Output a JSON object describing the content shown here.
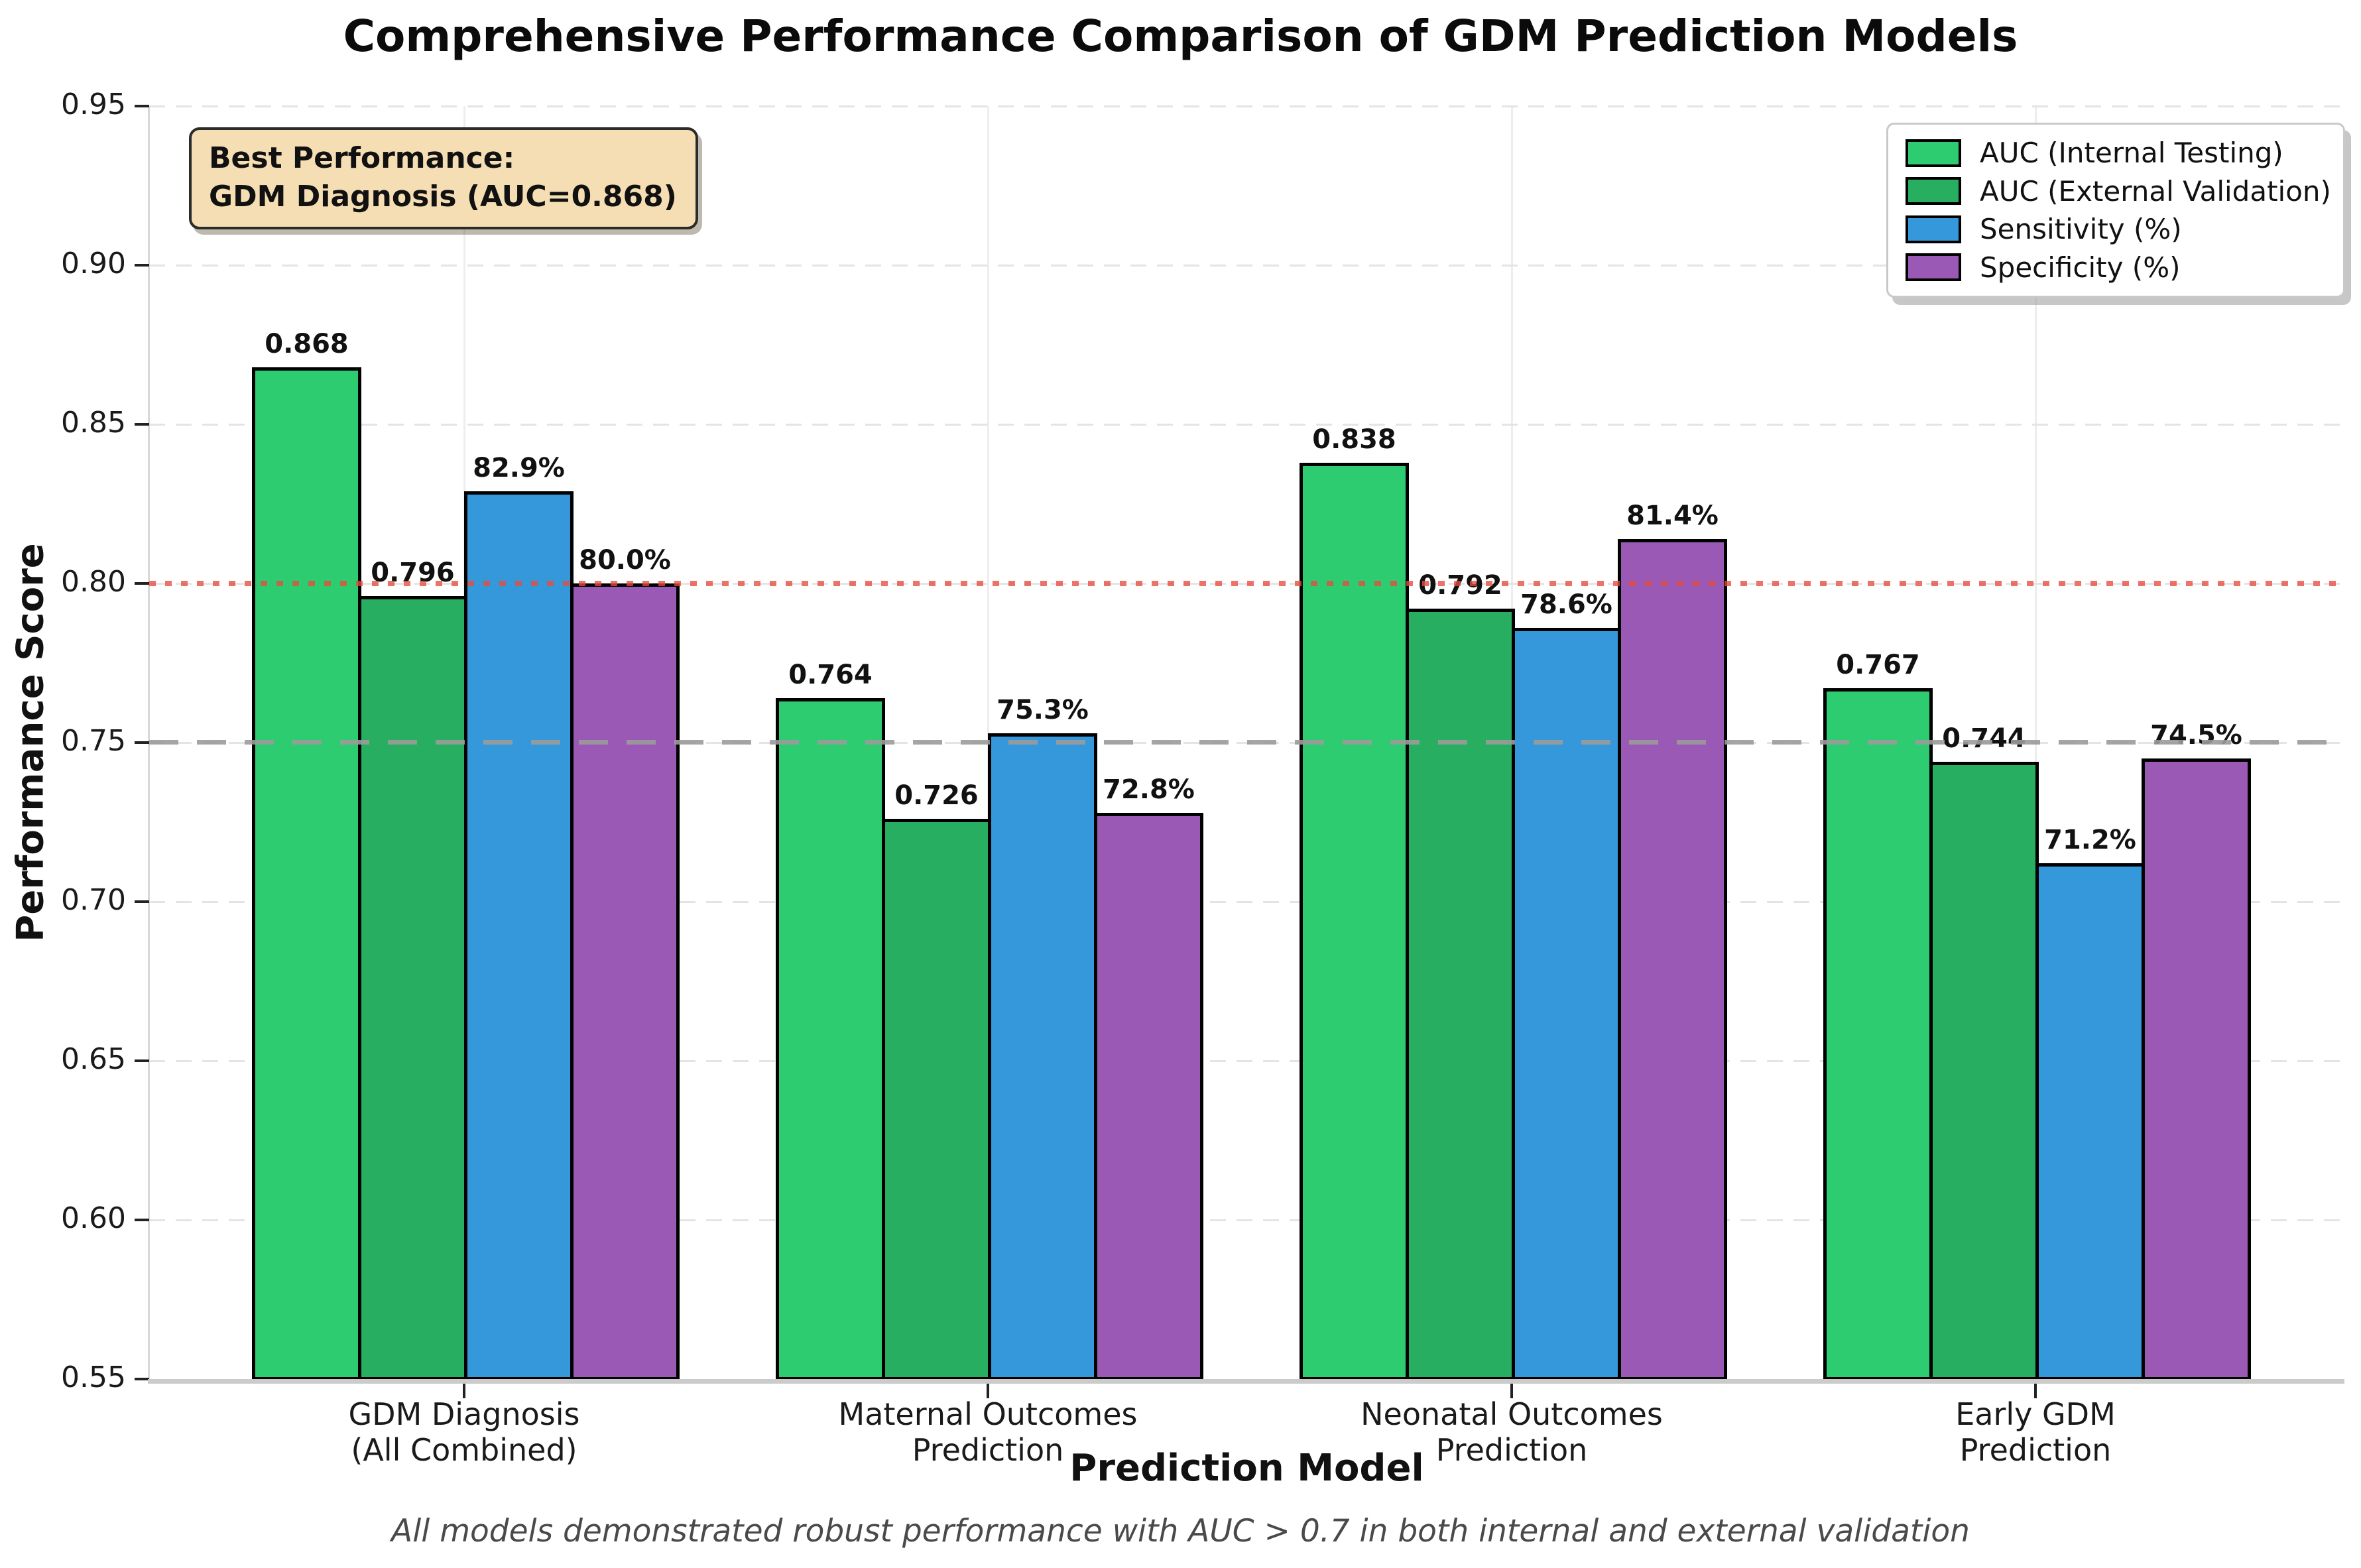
{
  "title": "Comprehensive Performance Comparison of GDM Prediction Models",
  "annotation": {
    "line1": "Best Performance:",
    "line2": "GDM Diagnosis (AUC=0.868)"
  },
  "footer": "All models demonstrated robust performance with AUC > 0.7 in both internal and external validation",
  "colors": {
    "auc_internal": "#2ecc71",
    "auc_external": "#27ae60",
    "sensitivity": "#3498db",
    "specificity": "#9b59b6",
    "threshold_high": "#e74c3c",
    "threshold_low": "#a0a0a0",
    "annotation_bg": "#f5deb3"
  },
  "chart_data": {
    "type": "bar",
    "title": "Comprehensive Performance Comparison of GDM Prediction Models",
    "xlabel": "Prediction Model",
    "ylabel": "Performance Score",
    "ylim": [
      0.55,
      0.95
    ],
    "y_ticks": [
      "0.55",
      "0.60",
      "0.65",
      "0.70",
      "0.75",
      "0.80",
      "0.85",
      "0.90",
      "0.95"
    ],
    "grid": "on",
    "legend_position": "upper right",
    "categories": [
      {
        "line1": "GDM Diagnosis",
        "line2": "(All Combined)"
      },
      {
        "line1": "Maternal Outcomes",
        "line2": "Prediction"
      },
      {
        "line1": "Neonatal Outcomes",
        "line2": "Prediction"
      },
      {
        "line1": "Early GDM",
        "line2": "Prediction"
      }
    ],
    "series": [
      {
        "name": "AUC (Internal Testing)",
        "color": "#2ecc71",
        "values": [
          0.868,
          0.764,
          0.838,
          0.767
        ],
        "labels": [
          "0.868",
          "0.764",
          "0.838",
          "0.767"
        ]
      },
      {
        "name": "AUC (External Validation)",
        "color": "#27ae60",
        "values": [
          0.796,
          0.726,
          0.792,
          0.744
        ],
        "labels": [
          "0.796",
          "0.726",
          "0.792",
          "0.744"
        ]
      },
      {
        "name": "Sensitivity (%)",
        "color": "#3498db",
        "values": [
          0.829,
          0.753,
          0.786,
          0.712
        ],
        "labels": [
          "82.9%",
          "75.3%",
          "78.6%",
          "71.2%"
        ]
      },
      {
        "name": "Specificity (%)",
        "color": "#9b59b6",
        "values": [
          0.8,
          0.728,
          0.814,
          0.745
        ],
        "labels": [
          "80.0%",
          "72.8%",
          "81.4%",
          "74.5%"
        ]
      }
    ],
    "reference_lines": [
      {
        "value": 0.8,
        "style": "dotted",
        "color": "#e74c3c",
        "name": "reference-line-0.80"
      },
      {
        "value": 0.75,
        "style": "dashed",
        "color": "#a0a0a0",
        "name": "reference-line-0.75"
      }
    ]
  }
}
